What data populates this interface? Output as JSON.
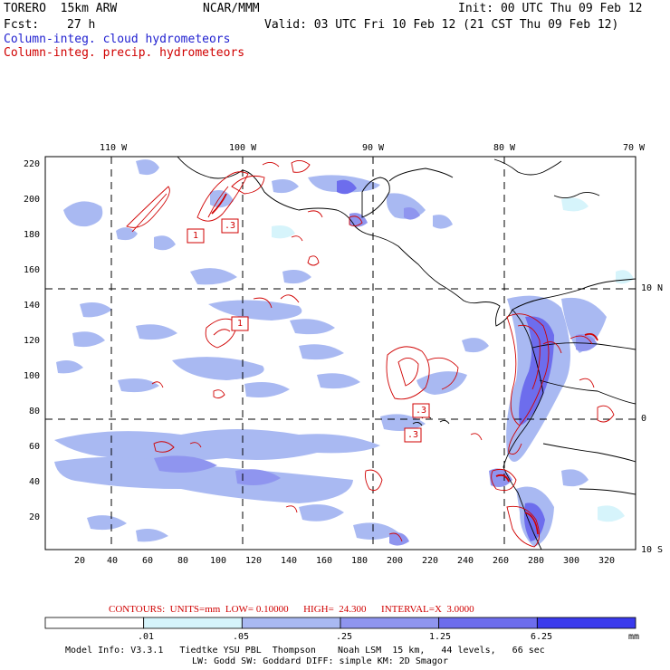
{
  "header": {
    "model": "TORERO  15km ARW",
    "org": "NCAR/MMM",
    "init": "Init: 00 UTC Thu 09 Feb 12",
    "fcst_label": "Fcst:",
    "fcst_value": "27 h",
    "valid": "Valid: 03 UTC Fri 10 Feb 12 (21 CST Thu 09 Feb 12)"
  },
  "fields": {
    "cloud": "Column-integ. cloud hydrometeors",
    "precip": "Column-integ. precip. hydrometeors"
  },
  "axes": {
    "lon_labels": [
      "110 W",
      "100 W",
      "90 W",
      "80 W",
      "70 W"
    ],
    "lat_labels": [
      "10 N",
      "0",
      "10 S"
    ],
    "y_ticks": [
      "220",
      "200",
      "180",
      "160",
      "140",
      "120",
      "100",
      "80",
      "60",
      "40",
      "20"
    ],
    "x_ticks": [
      "20",
      "40",
      "60",
      "80",
      "100",
      "120",
      "140",
      "160",
      "180",
      "200",
      "220",
      "240",
      "260",
      "280",
      "300",
      "320"
    ]
  },
  "contour_labels": [
    "1",
    ".3",
    "1",
    ".3",
    ".3"
  ],
  "contours_info": {
    "caption": "CONTOURS:  UNITS=mm  LOW= 0.10000      HIGH=  24.300      INTERVAL=X  3.0000"
  },
  "colorbar": {
    "labels": [
      ".01",
      ".05",
      ".25",
      "1.25",
      "6.25"
    ],
    "unit": "mm",
    "colors": [
      "#ffffff",
      "#d6f4fb",
      "#a9b9f2",
      "#8f95ef",
      "#6d6ded",
      "#3a3aed"
    ]
  },
  "footer": {
    "line1": "Model Info: V3.3.1   Tiedtke YSU PBL  Thompson    Noah LSM  15 km,   44 levels,   66 sec",
    "line2": "LW: Godd SW: Goddard DIFF: simple KM: 2D Smagor"
  }
}
